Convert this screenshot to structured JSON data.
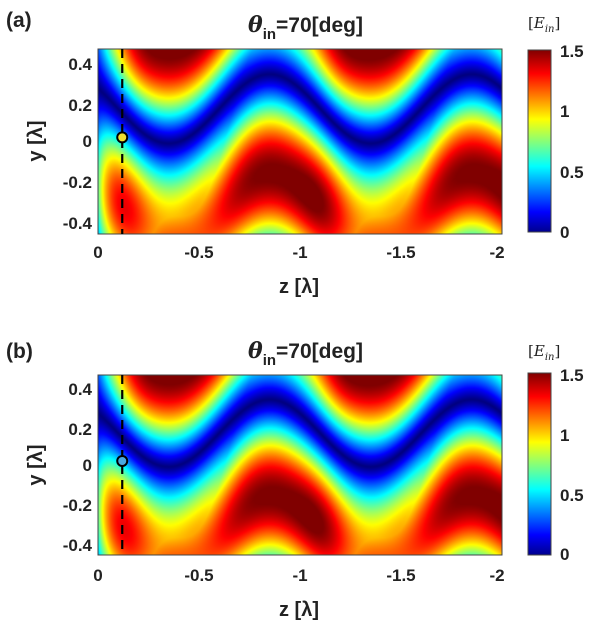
{
  "chart_data": [
    {
      "type": "heatmap",
      "panel_label": "(a)",
      "title_symbol": "θ",
      "title_subscript": "in",
      "title_rest": "=70[deg]",
      "xlabel": "z [λ]",
      "ylabel": "y [λ]",
      "x_ticks": [
        "0",
        "-0.5",
        "-1",
        "-1.5",
        "-2"
      ],
      "x_tick_values": [
        0,
        -0.5,
        -1,
        -1.5,
        -2
      ],
      "y_ticks": [
        "0.4",
        "0.2",
        "0",
        "-0.2",
        "-0.4"
      ],
      "y_tick_values": [
        0.4,
        0.2,
        0,
        -0.2,
        -0.4
      ],
      "xlim": [
        0,
        -2
      ],
      "ylim": [
        -0.45,
        0.45
      ],
      "colorbar": {
        "label_open": "[",
        "label_var": "E",
        "label_sub": "in",
        "label_close": "]",
        "ticks": [
          "1.5",
          "1",
          "0.5",
          "0"
        ],
        "tick_values": [
          1.5,
          1,
          0.5,
          0
        ],
        "range": [
          0,
          1.5
        ],
        "colormap": "jet"
      },
      "dashed_line": {
        "z": -0.12
      },
      "marker": {
        "z": -0.12,
        "y": 0.02,
        "fill": "#f0e030"
      }
    },
    {
      "type": "heatmap",
      "panel_label": "(b)",
      "title_symbol": "θ",
      "title_subscript": "in",
      "title_rest": "=70[deg]",
      "xlabel": "z [λ]",
      "ylabel": "y [λ]",
      "x_ticks": [
        "0",
        "-0.5",
        "-1",
        "-1.5",
        "-2"
      ],
      "x_tick_values": [
        0,
        -0.5,
        -1,
        -1.5,
        -2
      ],
      "y_ticks": [
        "0.4",
        "0.2",
        "0",
        "-0.2",
        "-0.4"
      ],
      "y_tick_values": [
        0.4,
        0.2,
        0,
        -0.2,
        -0.4
      ],
      "xlim": [
        0,
        -2
      ],
      "ylim": [
        -0.45,
        0.45
      ],
      "colorbar": {
        "label_open": "[",
        "label_var": "E",
        "label_sub": "in",
        "label_close": "]",
        "ticks": [
          "1.5",
          "1",
          "0.5",
          "0"
        ],
        "tick_values": [
          1.5,
          1,
          0.5,
          0
        ],
        "range": [
          0,
          1.5
        ],
        "colormap": "jet"
      },
      "dashed_line": {
        "z": -0.12
      },
      "marker": {
        "z": -0.12,
        "y": 0.02,
        "fill": "#4aa8e0"
      }
    }
  ]
}
